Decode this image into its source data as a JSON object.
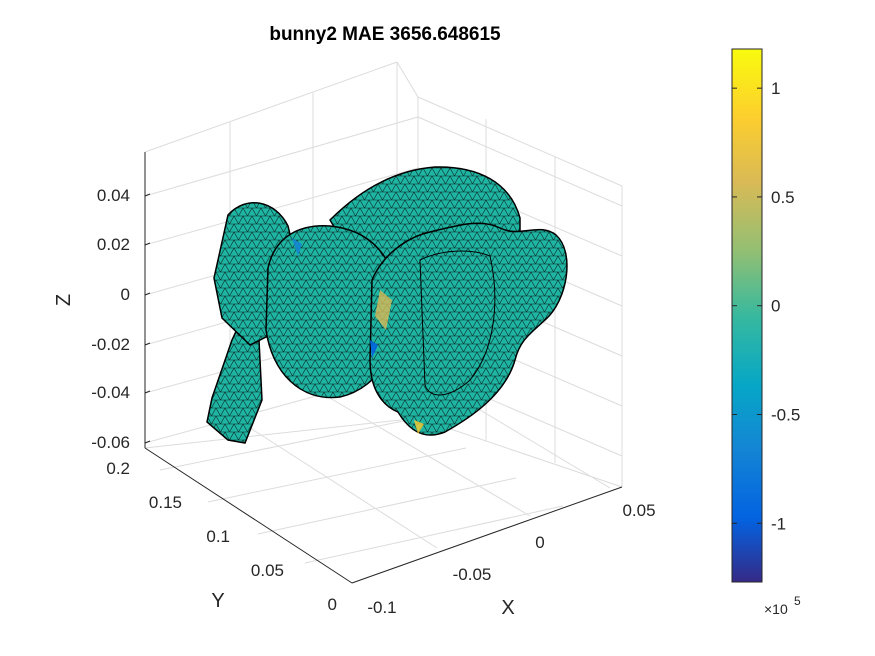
{
  "chart_data": {
    "type": "surface-3d",
    "title": "bunny2 MAE 3656.648615",
    "xlabel": "X",
    "ylabel": "Y",
    "zlabel": "Z",
    "x_ticks": [
      "-0.1",
      "-0.05",
      "0",
      "0.05"
    ],
    "y_ticks": [
      "0",
      "0.05",
      "0.1",
      "0.15",
      "0.2"
    ],
    "z_ticks": [
      "0.04",
      "0.02",
      "0",
      "-0.02",
      "-0.04",
      "-0.06"
    ],
    "x_range": [
      -0.1,
      0.06
    ],
    "y_range": [
      0,
      0.2
    ],
    "z_range": [
      -0.06,
      0.05
    ],
    "grid": true,
    "colormap": "parula",
    "colorbar": {
      "ticks": [
        "1",
        "0.5",
        "0",
        "-0.5",
        "-1"
      ],
      "tick_values": [
        1,
        0.5,
        0,
        -0.5,
        -1
      ],
      "min": -1.27,
      "max": 1.18,
      "exponent_label": "×10",
      "exponent": "5",
      "placement": "right"
    },
    "surface_color": "#1fb5a3",
    "edge_color": "#000000"
  }
}
